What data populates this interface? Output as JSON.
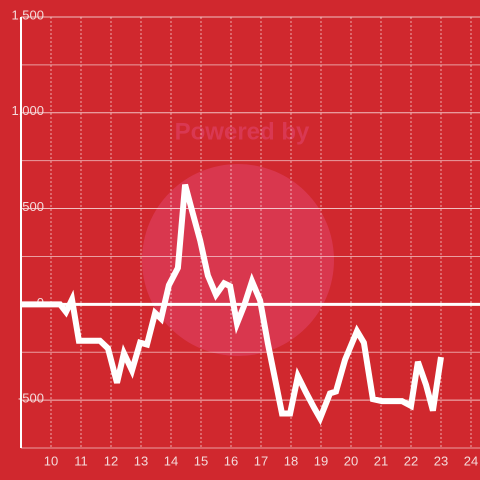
{
  "chart_data": {
    "type": "line",
    "watermark": "Powered by",
    "x": [
      9,
      10.3,
      10.5,
      10.7,
      10.93,
      11.63,
      11.9,
      12.2,
      12.43,
      12.7,
      12.97,
      13.2,
      13.47,
      13.67,
      13.93,
      14.23,
      14.47,
      14.7,
      14.97,
      15.23,
      15.5,
      15.77,
      15.97,
      16.2,
      16.43,
      16.7,
      16.97,
      17.23,
      17.7,
      17.97,
      18.23,
      18.5,
      18.77,
      18.97,
      19.3,
      19.5,
      19.8,
      20.2,
      20.43,
      20.73,
      21.03,
      21.7,
      22,
      22.23,
      22.5,
      22.73,
      23
    ],
    "series": [
      {
        "color": "#ffffff",
        "values": [
          0,
          0,
          -40,
          25,
          -190,
          -190,
          -230,
          -410,
          -255,
          -345,
          -200,
          -210,
          -45,
          -75,
          100,
          190,
          625,
          490,
          335,
          150,
          50,
          110,
          95,
          -100,
          -10,
          120,
          20,
          -205,
          -570,
          -570,
          -375,
          -460,
          -540,
          -595,
          -465,
          -455,
          -290,
          -140,
          -200,
          -495,
          -505,
          -505,
          -530,
          -300,
          -420,
          -555,
          -275
        ]
      }
    ],
    "xlim": [
      9,
      24.3
    ],
    "xticks": [
      10,
      11,
      12,
      13,
      14,
      15,
      16,
      17,
      18,
      19,
      20,
      21,
      22,
      23,
      24
    ],
    "ylim": [
      -750,
      1500
    ],
    "yticks": [
      -500,
      0,
      500,
      {
        "value": 1000,
        "label": "1,000"
      },
      {
        "value": 1500,
        "label": "1,500"
      }
    ],
    "y_minor_ticks": [
      -750,
      -250,
      250,
      750,
      1250
    ],
    "grid": true,
    "background": "#d0282e"
  }
}
